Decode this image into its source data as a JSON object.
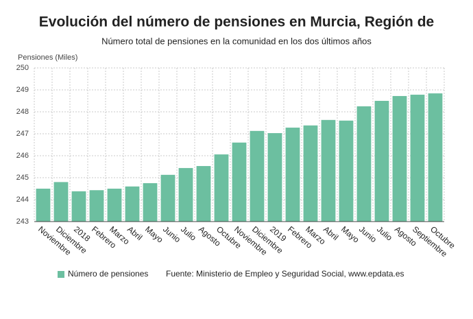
{
  "chart_data": {
    "type": "bar",
    "title": "Evolución del número de pensiones en Murcia, Región de",
    "subtitle": "Número total de pensiones en la comunidad en los dos últimos años",
    "y_label": "Pensiones (Miles)",
    "source": "Fuente: Ministerio de Empleo y Seguridad Social, www.epdata.es",
    "categories": [
      "Noviembre",
      "Diciembre",
      "2018",
      "Febrero",
      "Marzo",
      "Abril",
      "Mayo",
      "Junio",
      "Julio",
      "Agosto",
      "Octubre",
      "Noviembre",
      "Diciembre",
      "2019",
      "Febrero",
      "Marzo",
      "Abril",
      "Mayo",
      "Junio",
      "Julio",
      "Agosto",
      "Septiembre",
      "Octubre"
    ],
    "series": [
      {
        "name": "Número de pensiones",
        "color": "#6cbfa0",
        "values": [
          244.5,
          244.8,
          244.38,
          244.43,
          244.5,
          244.6,
          244.75,
          245.13,
          245.44,
          245.53,
          246.06,
          246.6,
          247.13,
          247.03,
          247.28,
          247.38,
          247.63,
          247.6,
          248.25,
          248.5,
          248.72,
          248.78,
          248.84
        ]
      }
    ],
    "ylim": [
      243,
      250
    ],
    "yticks": [
      243,
      244,
      245,
      246,
      247,
      248,
      249,
      250
    ],
    "grid": true
  }
}
